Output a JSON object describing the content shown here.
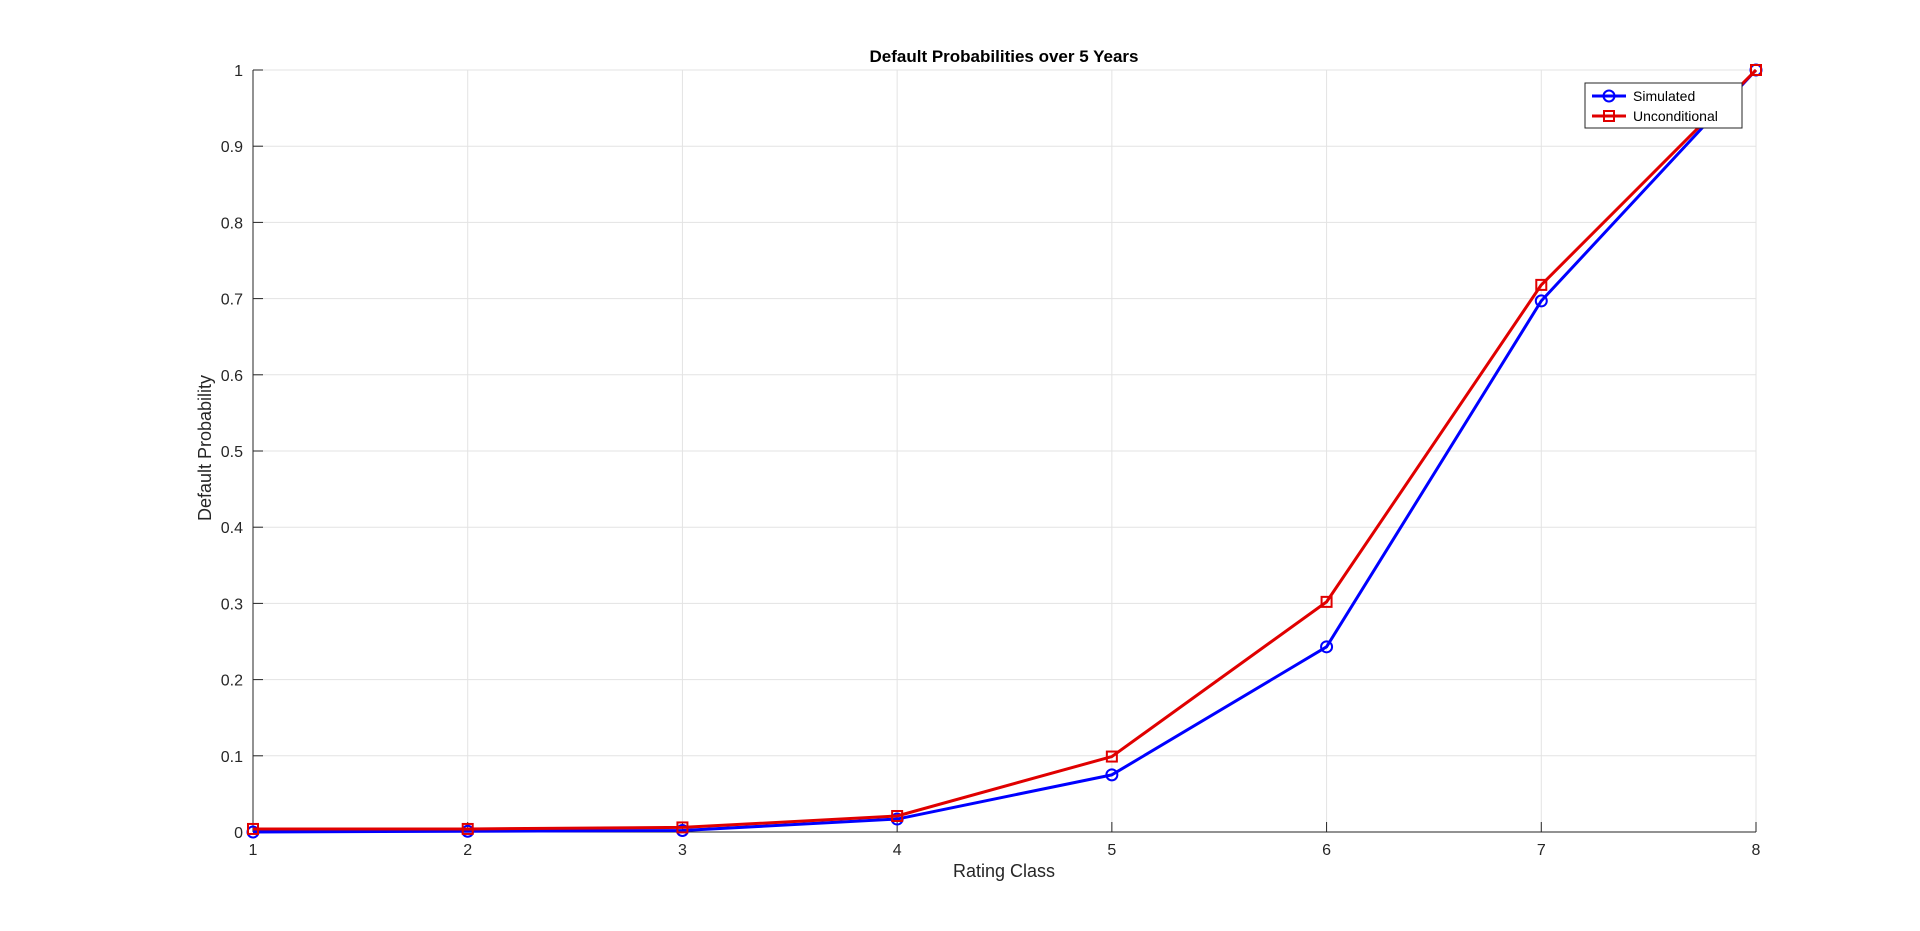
{
  "chart_data": {
    "type": "line",
    "title": "Default Probabilities over 5 Years",
    "xlabel": "Rating Class",
    "ylabel": "Default Probability",
    "x": [
      1,
      2,
      3,
      4,
      5,
      6,
      7,
      8
    ],
    "xlim": [
      1,
      8
    ],
    "ylim": [
      0,
      1
    ],
    "xticks": [
      "1",
      "2",
      "3",
      "4",
      "5",
      "6",
      "7",
      "8"
    ],
    "yticks": [
      "0",
      "0.1",
      "0.2",
      "0.3",
      "0.4",
      "0.5",
      "0.6",
      "0.7",
      "0.8",
      "0.9",
      "1"
    ],
    "grid": true,
    "legend_position": "top-right",
    "series": [
      {
        "name": "Simulated",
        "color": "#0000ff",
        "marker": "circle",
        "values": [
          0.0,
          0.001,
          0.002,
          0.017,
          0.075,
          0.243,
          0.697,
          1.0
        ]
      },
      {
        "name": "Unconditional",
        "color": "#e00000",
        "marker": "square",
        "values": [
          0.004,
          0.004,
          0.006,
          0.021,
          0.099,
          0.302,
          0.718,
          1.0
        ]
      }
    ]
  }
}
